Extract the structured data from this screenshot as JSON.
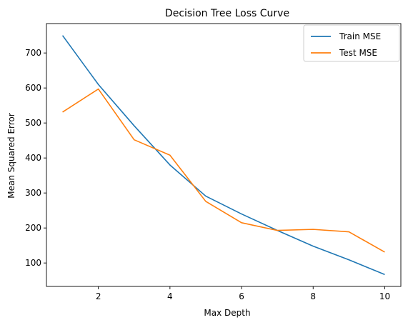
{
  "chart_data": {
    "type": "line",
    "title": "Decision Tree Loss Curve",
    "xlabel": "Max Depth",
    "ylabel": "Mean Squared Error",
    "x": [
      1,
      2,
      3,
      4,
      5,
      6,
      7,
      8,
      9,
      10
    ],
    "series": [
      {
        "name": "Train MSE",
        "color": "#1f77b4",
        "values": [
          750,
          610,
          492,
          380,
          291,
          240,
          193,
          148,
          109,
          67
        ]
      },
      {
        "name": "Test MSE",
        "color": "#ff7f0e",
        "values": [
          531,
          597,
          452,
          408,
          276,
          215,
          193,
          196,
          189,
          131
        ]
      }
    ],
    "xlim": [
      0.55,
      10.45
    ],
    "ylim": [
      33,
      784
    ],
    "xticks": [
      2,
      4,
      6,
      8,
      10
    ],
    "yticks": [
      100,
      200,
      300,
      400,
      500,
      600,
      700
    ],
    "grid": false,
    "legend_position": "top-right"
  }
}
